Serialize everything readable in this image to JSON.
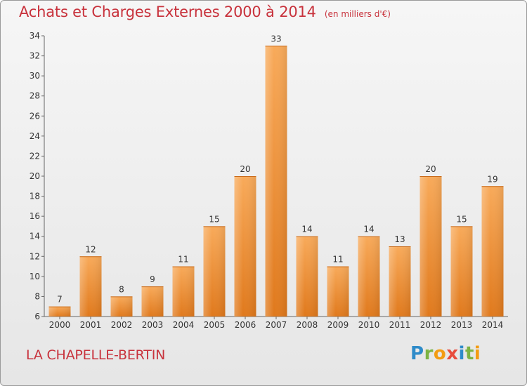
{
  "title": "Achats et Charges Externes 2000 à 2014",
  "unit": "(en milliers d'€)",
  "commune": "LA CHAPELLE-BERTIN",
  "logo": {
    "letters": [
      "P",
      "r",
      "o",
      "x",
      "i",
      "t",
      "i"
    ],
    "colors": [
      "#2e8bc9",
      "#7cb342",
      "#f39c12",
      "#e84c3d",
      "#2e8bc9",
      "#7cb342",
      "#f39c12"
    ]
  },
  "colors": {
    "bar_light": "#f8aa5a",
    "bar_dark": "#e0791c",
    "title": "#c8323c"
  },
  "chart_data": {
    "type": "bar",
    "categories": [
      "2000",
      "2001",
      "2002",
      "2003",
      "2004",
      "2005",
      "2006",
      "2007",
      "2008",
      "2009",
      "2010",
      "2011",
      "2012",
      "2013",
      "2014"
    ],
    "values": [
      7,
      12,
      8,
      9,
      11,
      15,
      20,
      33,
      14,
      11,
      14,
      13,
      20,
      15,
      19
    ],
    "ylim": [
      6,
      34
    ],
    "yticks": [
      6,
      8,
      10,
      12,
      14,
      16,
      18,
      20,
      22,
      24,
      26,
      28,
      30,
      32,
      34
    ],
    "grid": false
  }
}
